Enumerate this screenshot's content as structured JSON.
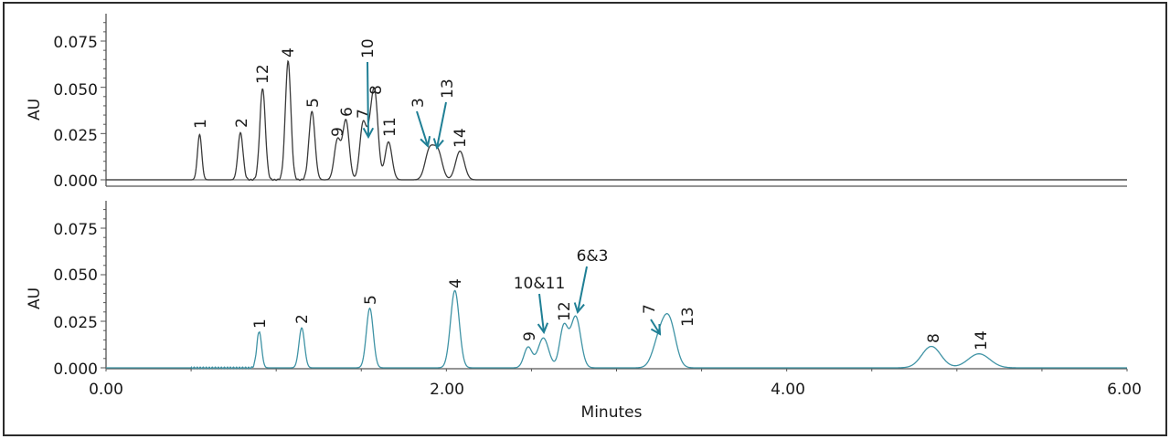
{
  "chart_data": [
    {
      "type": "line",
      "panel": "top",
      "title": "",
      "xlabel": "",
      "ylabel": "AU",
      "xlim": [
        0,
        6
      ],
      "ylim": [
        0,
        0.09
      ],
      "yticks": [
        "0.000",
        "0.025",
        "0.050",
        "0.075"
      ],
      "line_color": "#3a3a3a",
      "baseline_offset": true,
      "peaks": [
        {
          "label": "1",
          "rt": 0.55,
          "height": 0.0245,
          "width": 0.012
        },
        {
          "label": "2",
          "rt": 0.79,
          "height": 0.0255,
          "width": 0.014
        },
        {
          "label": "12",
          "rt": 0.92,
          "height": 0.0495,
          "width": 0.015
        },
        {
          "label": "4",
          "rt": 1.07,
          "height": 0.064,
          "width": 0.015
        },
        {
          "label": "5",
          "rt": 1.21,
          "height": 0.037,
          "width": 0.016
        },
        {
          "label": "9",
          "rt": 1.36,
          "height": 0.0215,
          "width": 0.017
        },
        {
          "label": "6",
          "rt": 1.41,
          "height": 0.032,
          "width": 0.017
        },
        {
          "label": "7",
          "rt": 1.51,
          "height": 0.03,
          "width": 0.017
        },
        {
          "label": "10",
          "rt": 1.55,
          "height": 0.019,
          "width": 0.016,
          "arrow": true
        },
        {
          "label": "8",
          "rt": 1.58,
          "height": 0.044,
          "width": 0.017
        },
        {
          "label": "11",
          "rt": 1.66,
          "height": 0.0205,
          "width": 0.018
        },
        {
          "label": "3",
          "rt": 1.9,
          "height": 0.0155,
          "width": 0.022,
          "arrow": true
        },
        {
          "label": "13",
          "rt": 1.95,
          "height": 0.015,
          "width": 0.022,
          "arrow": true
        },
        {
          "label": "14",
          "rt": 2.08,
          "height": 0.0155,
          "width": 0.022
        }
      ]
    },
    {
      "type": "line",
      "panel": "bottom",
      "title": "",
      "xlabel": "Minutes",
      "ylabel": "AU",
      "xlim": [
        0,
        6
      ],
      "ylim": [
        0,
        0.09
      ],
      "xticks": [
        "0.00",
        "2.00",
        "4.00",
        "6.00"
      ],
      "yticks": [
        "0.000",
        "0.025",
        "0.050",
        "0.075"
      ],
      "line_color": "#3f93a5",
      "peaks": [
        {
          "label": "1",
          "rt": 0.9,
          "height": 0.0195,
          "width": 0.013
        },
        {
          "label": "2",
          "rt": 1.15,
          "height": 0.0215,
          "width": 0.015
        },
        {
          "label": "5",
          "rt": 1.55,
          "height": 0.032,
          "width": 0.018
        },
        {
          "label": "4",
          "rt": 2.05,
          "height": 0.0415,
          "width": 0.022
        },
        {
          "label": "9",
          "rt": 2.48,
          "height": 0.011,
          "width": 0.02
        },
        {
          "label": "10&11",
          "rt": 2.57,
          "height": 0.016,
          "width": 0.026,
          "arrow": true
        },
        {
          "label": "12",
          "rt": 2.69,
          "height": 0.022,
          "width": 0.02
        },
        {
          "label": "6&3",
          "rt": 2.76,
          "height": 0.0275,
          "width": 0.024,
          "arrow": true
        },
        {
          "label": "7",
          "rt": 3.25,
          "height": 0.014,
          "width": 0.03,
          "arrow": true
        },
        {
          "label": "13",
          "rt": 3.31,
          "height": 0.024,
          "width": 0.03
        },
        {
          "label": "8",
          "rt": 4.85,
          "height": 0.0115,
          "width": 0.04
        },
        {
          "label": "14",
          "rt": 5.13,
          "height": 0.0075,
          "width": 0.045
        }
      ]
    }
  ],
  "axes": {
    "ylabel": "AU",
    "xlabel": "Minutes",
    "xticks": [
      "0.00",
      "2.00",
      "4.00",
      "6.00"
    ],
    "yticks": [
      "0.075",
      "0.050",
      "0.025",
      "0.000"
    ]
  },
  "annotation_color": "#1f7f95"
}
